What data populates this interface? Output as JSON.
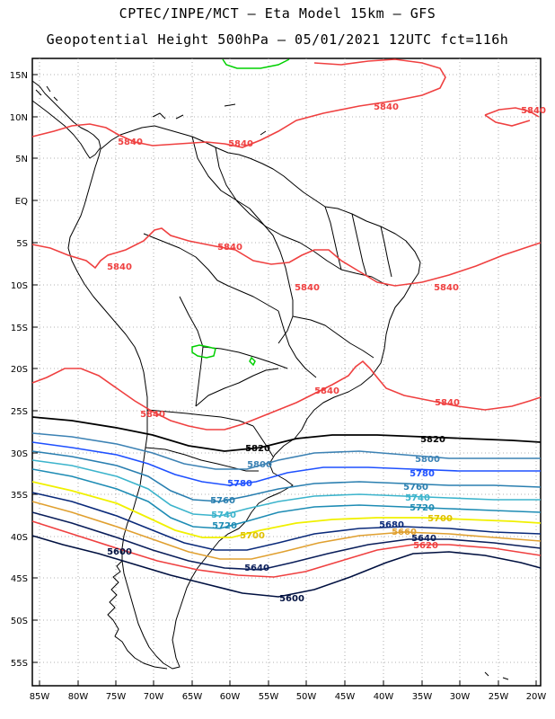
{
  "header": {
    "line1": "CPTEC/INPE/MCT –  Eta Model 15km – GFS",
    "line2": "Geopotential Height 500hPa – 05/01/2021 12UTC fct=116h"
  },
  "axes": {
    "lat_labels": [
      "15N",
      "10N",
      "5N",
      "EQ",
      "5S",
      "10S",
      "15S",
      "20S",
      "25S",
      "30S",
      "35S",
      "40S",
      "45S",
      "50S",
      "55S"
    ],
    "lon_labels": [
      "85W",
      "80W",
      "75W",
      "70W",
      "65W",
      "60W",
      "55W",
      "50W",
      "45W",
      "40W",
      "35W",
      "30W",
      "25W",
      "20W"
    ]
  },
  "contours": {
    "c5840": "5840",
    "c5820": "5820",
    "c5800": "5800",
    "c5780": "5780",
    "c5760": "5760",
    "c5740": "5740",
    "c5720": "5720",
    "c5700": "5700",
    "c5680": "5680",
    "c5660": "5660",
    "c5640": "5640",
    "c5620": "5620",
    "c5600": "5600"
  },
  "colors": {
    "c5840": "#ef4040",
    "c5820": "#000000",
    "c5800": "#3c82b4",
    "c5780": "#1e50ff",
    "c5760": "#2a7fb0",
    "c5740": "#3cb4cc",
    "c5720": "#1e8cb4",
    "c5700": "#f0f000",
    "c5680": "#0a2a7a",
    "c5660": "#e0a030",
    "c5640": "#0a1e5a",
    "c5620": "#ef4040",
    "c5600": "#001040",
    "land": "#000000",
    "grid": "#9a9a9a",
    "high_contour": "#00d000"
  }
}
